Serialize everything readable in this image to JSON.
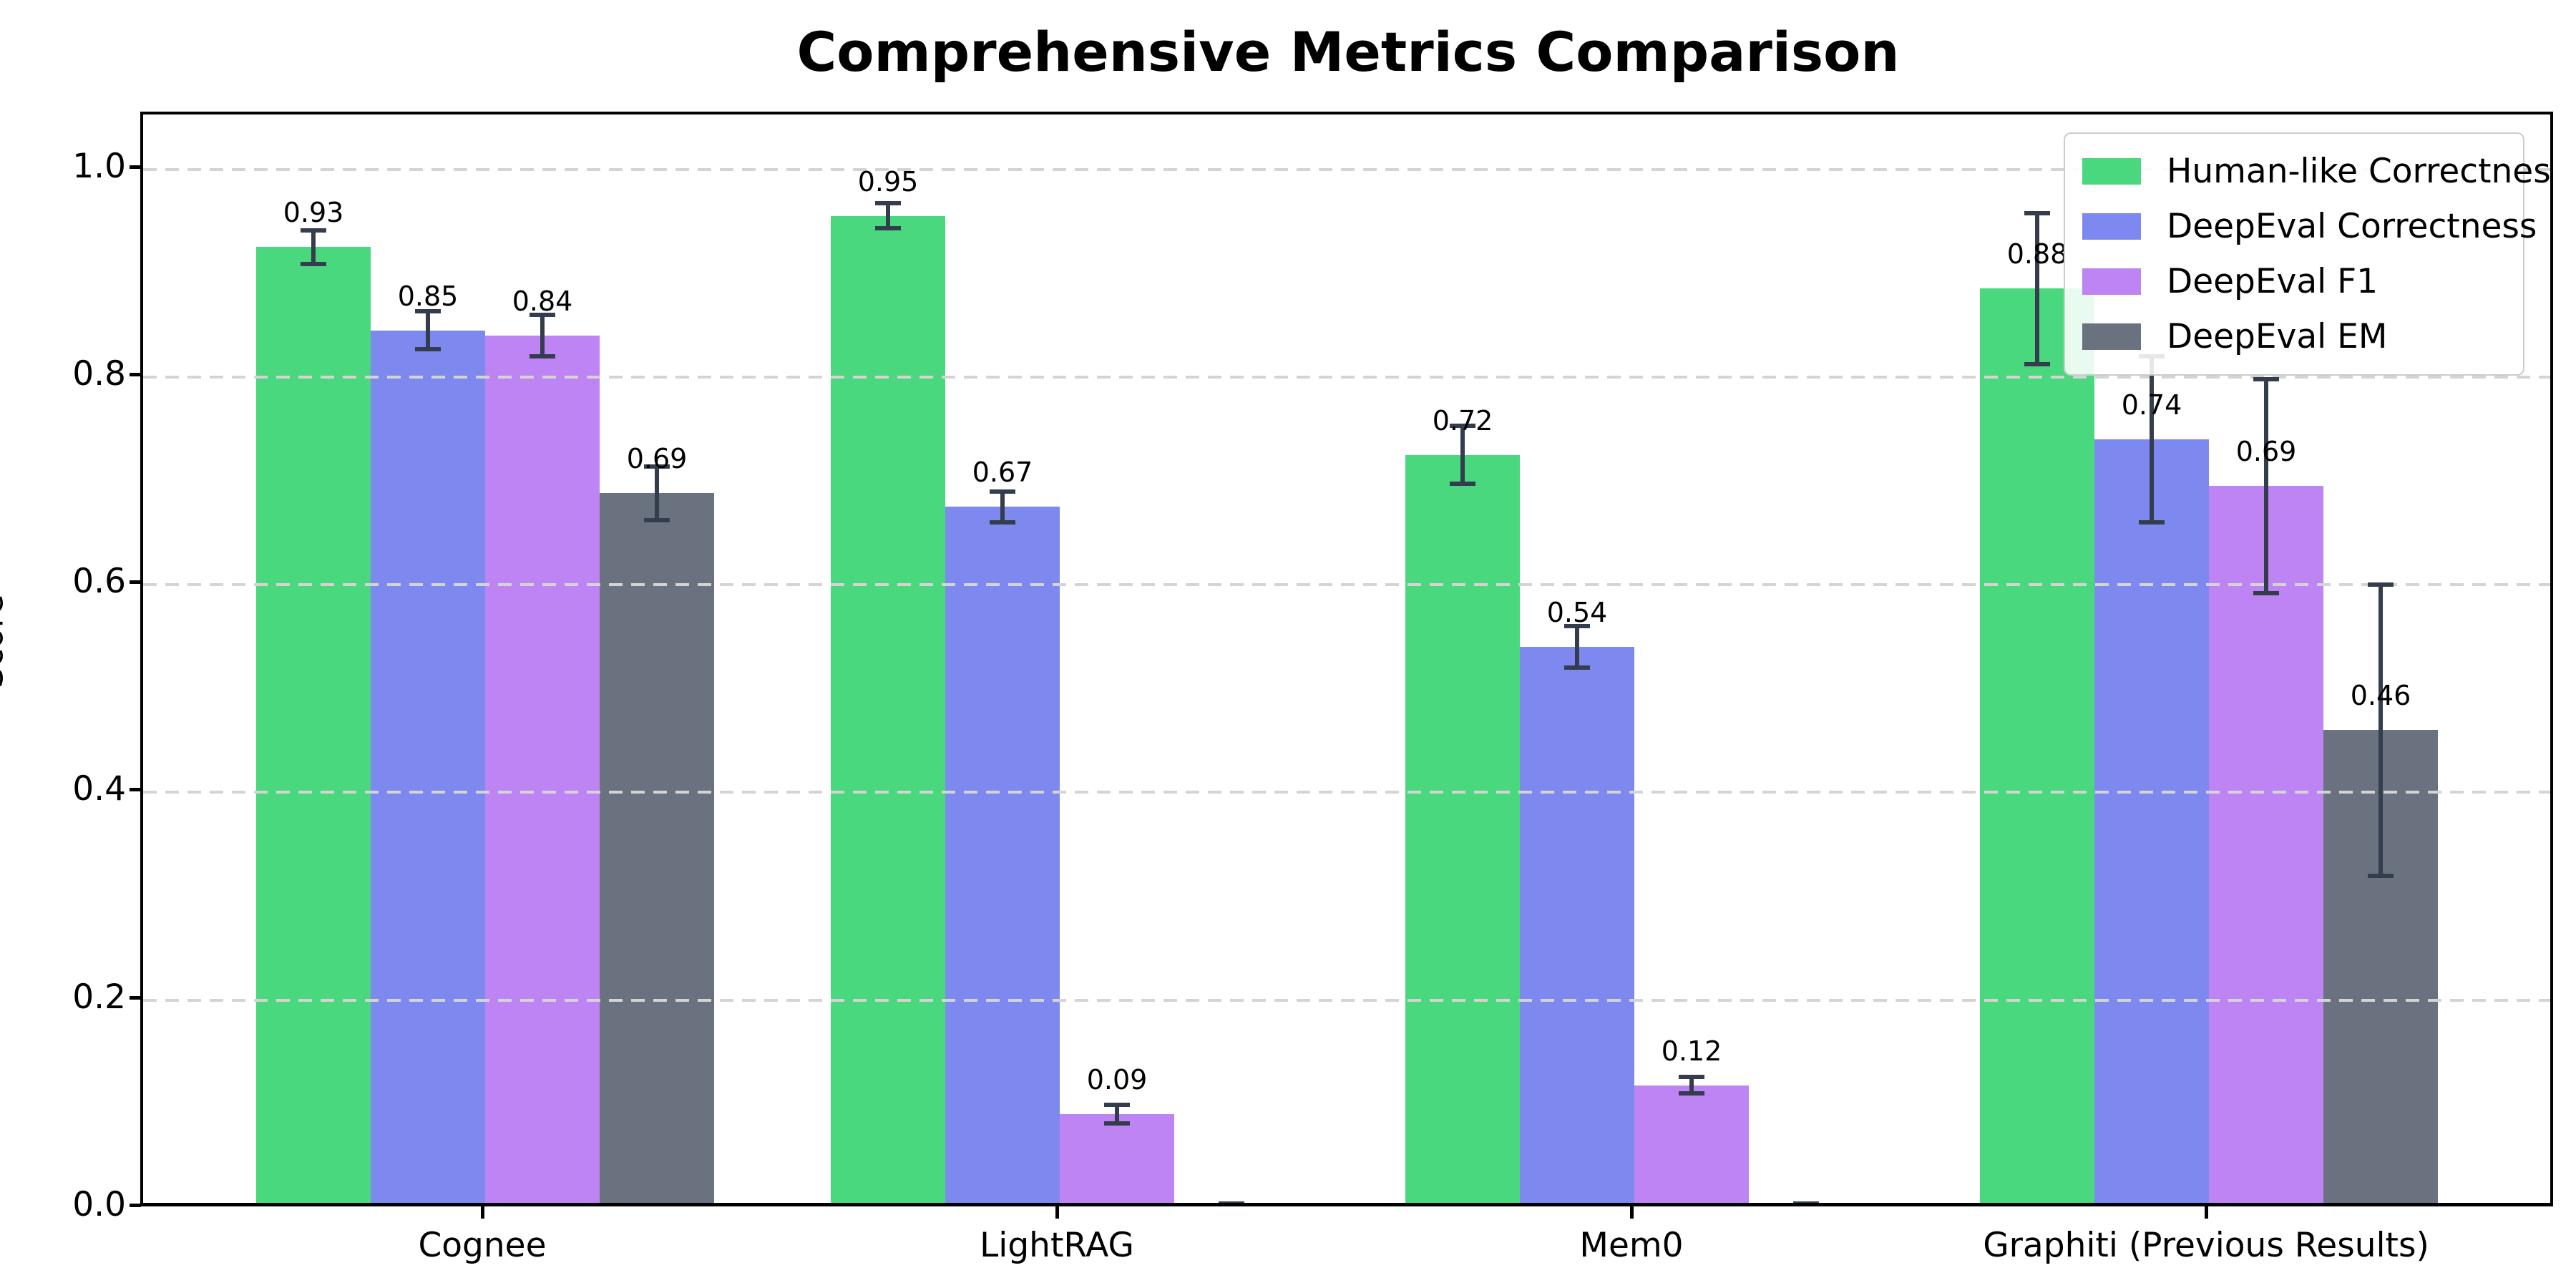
{
  "title": "Comprehensive Metrics Comparison",
  "chart_data": {
    "type": "bar",
    "title": "Comprehensive Metrics Comparison",
    "xlabel": "",
    "ylabel": "Score",
    "categories": [
      "Cognee",
      "LightRAG",
      "Mem0",
      "Graphiti (Previous Results)"
    ],
    "series": [
      {
        "name": "Human-like Correctness",
        "color": "#4ad87f",
        "values": [
          0.925,
          0.955,
          0.725,
          0.885
        ],
        "errors": [
          0.016,
          0.012,
          0.028,
          0.073
        ],
        "labels": [
          "0.93",
          "0.95",
          "0.72",
          "0.88"
        ]
      },
      {
        "name": "DeepEval Correctness",
        "color": "#7e89ef",
        "values": [
          0.845,
          0.675,
          0.54,
          0.74
        ],
        "errors": [
          0.018,
          0.015,
          0.02,
          0.08
        ],
        "labels": [
          "0.85",
          "0.67",
          "0.54",
          "0.74"
        ]
      },
      {
        "name": "DeepEval F1",
        "color": "#bf84f4",
        "values": [
          0.84,
          0.09,
          0.118,
          0.695
        ],
        "errors": [
          0.02,
          0.009,
          0.008,
          0.103
        ],
        "labels": [
          "0.84",
          "0.09",
          "0.12",
          "0.69"
        ]
      },
      {
        "name": "DeepEval EM",
        "color": "#6a7280",
        "values": [
          0.688,
          0.0,
          0.0,
          0.46
        ],
        "errors": [
          0.026,
          0.004,
          0.004,
          0.14
        ],
        "labels": [
          "0.69",
          "",
          "",
          "0.46"
        ]
      }
    ],
    "yticks": [
      "0.0",
      "0.2",
      "0.4",
      "0.6",
      "0.8",
      "1.0"
    ],
    "ytick_values": [
      0.0,
      0.2,
      0.4,
      0.6,
      0.8,
      1.0
    ],
    "ylim": [
      0,
      1.05
    ],
    "grid": "horizontal-dashed",
    "grid_color": "#d4d4d4",
    "error_bar_color": "#333d4d",
    "legend_position": "upper-right",
    "legend_items": [
      "Human-like Correctness",
      "DeepEval Correctness",
      "DeepEval F1",
      "DeepEval EM"
    ]
  }
}
